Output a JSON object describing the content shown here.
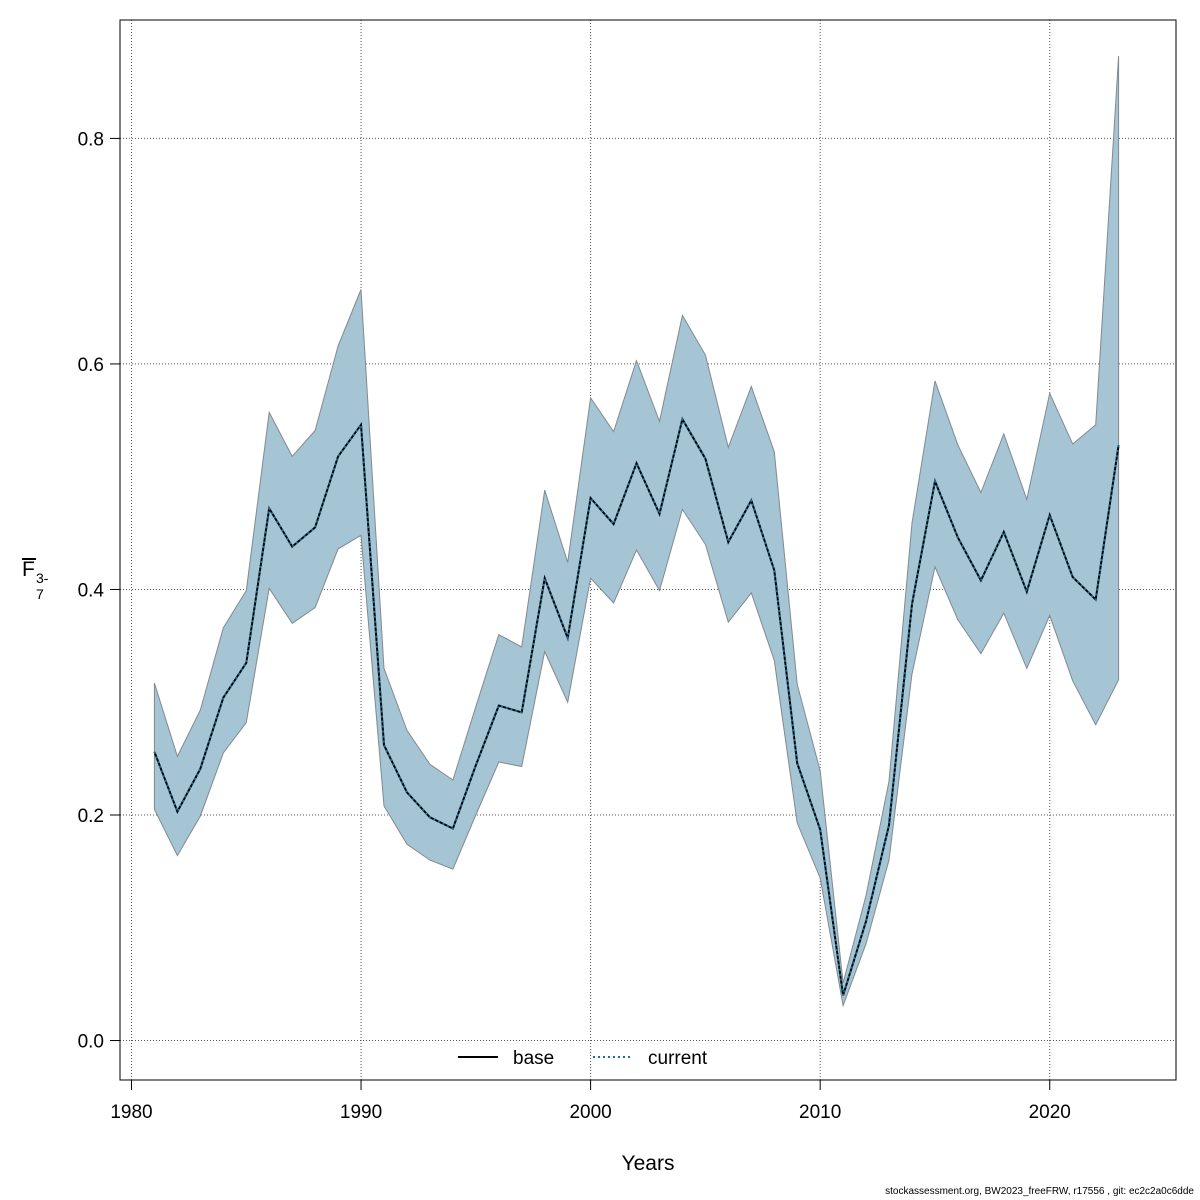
{
  "chart_data": {
    "type": "line",
    "xlabel": "Years",
    "ylabel": "F",
    "ylabel_subscript": "3-7",
    "xlim": [
      1979.5,
      2025.5
    ],
    "ylim": [
      -0.035,
      0.905
    ],
    "xticks": [
      1980,
      1990,
      2000,
      2010,
      2020
    ],
    "yticks": [
      0.0,
      0.2,
      0.4,
      0.6,
      0.8
    ],
    "grid": true,
    "legend_position": "bottom-center",
    "band_color": "#a5c4d4",
    "band_edge_color": "#808a90",
    "x": [
      1981,
      1982,
      1983,
      1984,
      1985,
      1986,
      1987,
      1988,
      1989,
      1990,
      1991,
      1992,
      1993,
      1994,
      1995,
      1996,
      1997,
      1998,
      1999,
      2000,
      2001,
      2002,
      2003,
      2004,
      2005,
      2006,
      2007,
      2008,
      2009,
      2010,
      2011,
      2012,
      2013,
      2014,
      2015,
      2016,
      2017,
      2018,
      2019,
      2020,
      2021,
      2022,
      2023
    ],
    "band_upper": [
      0.317,
      0.252,
      0.293,
      0.366,
      0.399,
      0.557,
      0.518,
      0.541,
      0.616,
      0.666,
      0.33,
      0.275,
      0.245,
      0.231,
      0.296,
      0.36,
      0.349,
      0.488,
      0.424,
      0.57,
      0.54,
      0.603,
      0.549,
      0.643,
      0.608,
      0.526,
      0.58,
      0.522,
      0.316,
      0.239,
      0.051,
      0.129,
      0.23,
      0.459,
      0.585,
      0.528,
      0.486,
      0.538,
      0.48,
      0.574,
      0.529,
      0.546,
      0.873
    ],
    "band_lower": [
      0.205,
      0.164,
      0.199,
      0.255,
      0.282,
      0.401,
      0.37,
      0.384,
      0.436,
      0.448,
      0.208,
      0.174,
      0.16,
      0.152,
      0.2,
      0.247,
      0.243,
      0.345,
      0.3,
      0.41,
      0.388,
      0.435,
      0.399,
      0.471,
      0.44,
      0.371,
      0.397,
      0.337,
      0.193,
      0.144,
      0.031,
      0.086,
      0.16,
      0.325,
      0.42,
      0.373,
      0.343,
      0.379,
      0.33,
      0.377,
      0.319,
      0.28,
      0.32
    ],
    "series": [
      {
        "name": "base",
        "color": "#000000",
        "dash": "solid",
        "values": [
          0.256,
          0.203,
          0.241,
          0.304,
          0.335,
          0.472,
          0.438,
          0.455,
          0.518,
          0.546,
          0.262,
          0.22,
          0.198,
          0.188,
          0.244,
          0.297,
          0.291,
          0.41,
          0.357,
          0.481,
          0.458,
          0.512,
          0.467,
          0.551,
          0.516,
          0.442,
          0.479,
          0.417,
          0.246,
          0.187,
          0.04,
          0.106,
          0.191,
          0.387,
          0.496,
          0.446,
          0.408,
          0.451,
          0.398,
          0.466,
          0.411,
          0.391,
          0.528
        ]
      },
      {
        "name": "current",
        "color": "#1b6f99",
        "dash": "dotted",
        "values": [
          0.256,
          0.203,
          0.241,
          0.304,
          0.335,
          0.472,
          0.438,
          0.455,
          0.518,
          0.546,
          0.262,
          0.22,
          0.198,
          0.188,
          0.244,
          0.297,
          0.291,
          0.41,
          0.357,
          0.481,
          0.458,
          0.512,
          0.467,
          0.551,
          0.516,
          0.442,
          0.479,
          0.417,
          0.246,
          0.187,
          0.04,
          0.106,
          0.191,
          0.387,
          0.496,
          0.446,
          0.408,
          0.451,
          0.398,
          0.466,
          0.411,
          0.391,
          0.528
        ]
      }
    ]
  },
  "footer": "stockassessment.org, BW2023_freeFRW, r17556 , git: ec2c2a0c6dde"
}
